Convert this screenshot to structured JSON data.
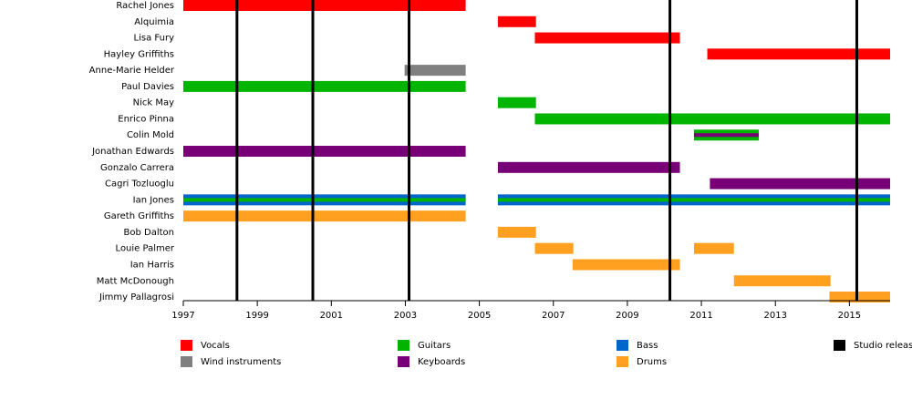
{
  "chart_data": {
    "type": "timeline",
    "categories": [
      "Rachel Jones",
      "Alquimia",
      "Lisa Fury",
      "Hayley Griffiths",
      "Anne-Marie Helder",
      "Paul Davies",
      "Nick May",
      "Enrico Pinna",
      "Colin Mold",
      "Jonathan Edwards",
      "Gonzalo Carrera",
      "Cagri Tozluoglu",
      "Ian Jones",
      "Gareth Griffiths",
      "Bob Dalton",
      "Louie Palmer",
      "Ian Harris",
      "Matt McDonough",
      "Jimmy Pallagrosi"
    ],
    "series": [
      {
        "name": "Vocals",
        "color": "#ff0000",
        "values": [
          [
            [
              1997,
              2004.63
            ]
          ],
          [
            [
              2005.5,
              2006.53
            ]
          ],
          [
            [
              2006.5,
              2010.42
            ]
          ],
          [
            [
              2011.16,
              2016.1
            ]
          ],
          [],
          [],
          [],
          [],
          [],
          [],
          [],
          [],
          [],
          [],
          [],
          [],
          [],
          [],
          []
        ]
      },
      {
        "name": "Wind instruments",
        "color": "#808080",
        "values": [
          [],
          [],
          [],
          [],
          [
            [
              2002.98,
              2004.63
            ]
          ],
          [],
          [],
          [],
          [],
          [],
          [],
          [],
          [],
          [],
          [],
          [],
          [],
          [],
          []
        ]
      },
      {
        "name": "Bass",
        "color": "#0066cc",
        "values": [
          [],
          [],
          [],
          [],
          [],
          [],
          [],
          [],
          [],
          [],
          [],
          [],
          [
            [
              1997,
              2004.63
            ],
            [
              2005.5,
              2016.1
            ]
          ],
          [],
          [],
          [],
          [],
          [],
          []
        ]
      },
      {
        "name": "Guitars",
        "color": "#00b400",
        "values": [
          [],
          [],
          [],
          [],
          [],
          [
            [
              1997,
              2004.63
            ]
          ],
          [
            [
              2005.5,
              2006.53
            ]
          ],
          [
            [
              2006.5,
              2016.1
            ]
          ],
          [
            [
              2010.8,
              2012.55
            ]
          ],
          [],
          [],
          [],
          [
            [
              1997,
              2004.63
            ],
            [
              2005.5,
              2016.1
            ]
          ],
          [],
          [],
          [],
          [],
          [],
          []
        ]
      },
      {
        "name": "Keyboards",
        "color": "#770077",
        "values": [
          [],
          [],
          [],
          [],
          [],
          [],
          [],
          [],
          [
            [
              2010.8,
              2012.55
            ]
          ],
          [
            [
              1997,
              2004.63
            ]
          ],
          [
            [
              2005.5,
              2010.42
            ]
          ],
          [
            [
              2011.23,
              2016.1
            ]
          ],
          [],
          [],
          [],
          [],
          [],
          [],
          []
        ]
      },
      {
        "name": "Drums",
        "color": "#ffa020",
        "values": [
          [],
          [],
          [],
          [],
          [],
          [],
          [],
          [],
          [],
          [],
          [],
          [],
          [],
          [
            [
              1997,
              2004.63
            ]
          ],
          [
            [
              2005.5,
              2006.53
            ]
          ],
          [
            [
              2006.5,
              2007.54
            ],
            [
              2010.8,
              2011.88
            ]
          ],
          [
            [
              2007.52,
              2010.42
            ]
          ],
          [
            [
              2011.88,
              2014.49
            ]
          ],
          [
            [
              2014.46,
              2016.1
            ]
          ]
        ]
      }
    ],
    "releases": {
      "name": "Studio release",
      "color": "#000000",
      "x": [
        1998.45,
        2000.5,
        2003.1,
        2010.15,
        2015.2
      ]
    },
    "xlim": [
      1997,
      2016.1
    ],
    "xticks": [
      1997,
      1999,
      2001,
      2003,
      2005,
      2007,
      2009,
      2011,
      2013,
      2015
    ]
  }
}
